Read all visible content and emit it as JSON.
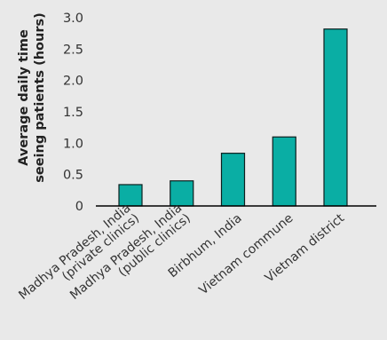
{
  "chart_data": {
    "type": "bar",
    "title": "",
    "xlabel": "",
    "ylabel_lines": [
      "Average daily time",
      "seeing patients (hours)"
    ],
    "categories": [
      [
        "Madhya Pradesh, India",
        "(private clinics)"
      ],
      [
        "Madhya Pradesh, India",
        "(public clinics)"
      ],
      [
        "Birbhum, India"
      ],
      [
        "Vietnam commune"
      ],
      [
        "Vietnam district"
      ]
    ],
    "values": [
      0.34,
      0.4,
      0.84,
      1.1,
      2.82
    ],
    "ylim": [
      0,
      3.0
    ],
    "yticks": [
      0,
      0.5,
      1.0,
      1.5,
      2.0,
      2.5,
      3.0
    ],
    "ytick_labels": [
      "0",
      "0.5",
      "1.0",
      "1.5",
      "2.0",
      "2.5",
      "3.0"
    ],
    "bar_color": "#0aaea4",
    "bar_edge_color": "#0d1f1e",
    "axis_color": "#000000",
    "background_color": "#e9e9e9",
    "grid": false,
    "legend": "none"
  }
}
